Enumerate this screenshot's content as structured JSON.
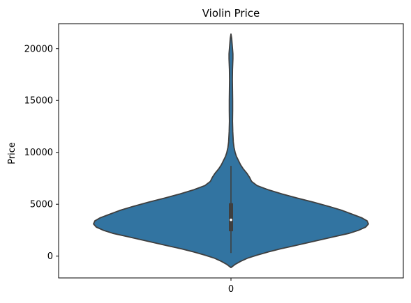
{
  "chart_data": {
    "type": "violin",
    "title": "Violin Price",
    "xlabel": "",
    "ylabel": "Price",
    "categories": [
      "0"
    ],
    "ylim": [
      -2100,
      22400
    ],
    "yticks": [
      0,
      5000,
      10000,
      15000,
      20000
    ],
    "grid": false,
    "color": "#3274a1",
    "edge_color": "#3f3f3f",
    "violin": {
      "min": -1100,
      "max": 21400,
      "median": 3500,
      "q1": 2400,
      "q3": 5100,
      "whisker_low": 300,
      "whisker_high": 8700,
      "density": [
        [
          -1100,
          0.0
        ],
        [
          -800,
          0.03
        ],
        [
          -500,
          0.07
        ],
        [
          -200,
          0.12
        ],
        [
          100,
          0.19
        ],
        [
          400,
          0.27
        ],
        [
          700,
          0.36
        ],
        [
          1000,
          0.46
        ],
        [
          1300,
          0.56
        ],
        [
          1600,
          0.66
        ],
        [
          1900,
          0.76
        ],
        [
          2200,
          0.86
        ],
        [
          2500,
          0.93
        ],
        [
          2800,
          0.98
        ],
        [
          3100,
          1.0
        ],
        [
          3400,
          0.99
        ],
        [
          3700,
          0.95
        ],
        [
          4000,
          0.89
        ],
        [
          4400,
          0.81
        ],
        [
          4800,
          0.71
        ],
        [
          5200,
          0.6
        ],
        [
          5600,
          0.48
        ],
        [
          6000,
          0.37
        ],
        [
          6400,
          0.27
        ],
        [
          6800,
          0.19
        ],
        [
          7200,
          0.15
        ],
        [
          7600,
          0.135
        ],
        [
          8000,
          0.115
        ],
        [
          8400,
          0.09
        ],
        [
          8800,
          0.07
        ],
        [
          9200,
          0.055
        ],
        [
          9600,
          0.04
        ],
        [
          10000,
          0.03
        ],
        [
          10500,
          0.022
        ],
        [
          11000,
          0.017
        ],
        [
          12000,
          0.013
        ],
        [
          13000,
          0.011
        ],
        [
          14000,
          0.012
        ],
        [
          15000,
          0.012
        ],
        [
          16000,
          0.011
        ],
        [
          17000,
          0.01
        ],
        [
          18000,
          0.011
        ],
        [
          19000,
          0.014
        ],
        [
          19500,
          0.014
        ],
        [
          20000,
          0.011
        ],
        [
          20500,
          0.008
        ],
        [
          21000,
          0.005
        ],
        [
          21400,
          0.0
        ]
      ]
    }
  }
}
